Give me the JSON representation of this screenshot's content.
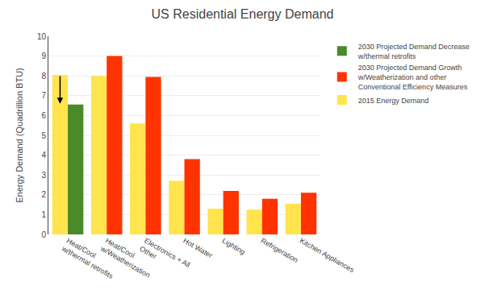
{
  "chart_data": {
    "type": "bar",
    "title": "US Residential Energy Demand",
    "ylabel": "Energy Demand (Quadrillion BTU)",
    "categories": [
      "Heat/Cool\nw/thermal retrofits",
      "Heat/Cool\nw/Weatherization",
      "Electronics + All\nOther",
      "Hot Water",
      "Lighting",
      "Refrigeration",
      "Kitchen Appliances"
    ],
    "series": [
      {
        "name": "2015 Energy Demand",
        "color": "#FFE44D",
        "values": [
          8.05,
          8.0,
          5.6,
          2.7,
          1.3,
          1.25,
          1.55
        ]
      },
      {
        "name": "2030 Projected Demand Decrease\nw/thermal retrofits",
        "color": "#4A8A28",
        "values": [
          6.55,
          null,
          null,
          null,
          null,
          null,
          null
        ]
      },
      {
        "name": "2030 Projected Demand Growth\nw/Weatherization and other\nConventional Efficiency Measures",
        "color": "#FF3300",
        "values": [
          null,
          9.0,
          7.95,
          3.8,
          2.2,
          1.8,
          2.1
        ]
      }
    ],
    "arrow": {
      "category": "Heat/Cool\nw/thermal retrofits",
      "start": 8.05,
      "end": 6.6
    },
    "ylim": [
      0,
      10
    ],
    "yticks": [
      0,
      1,
      2,
      3,
      4,
      5,
      6,
      7,
      8,
      9,
      10
    ],
    "grid": true,
    "legend": "right"
  }
}
